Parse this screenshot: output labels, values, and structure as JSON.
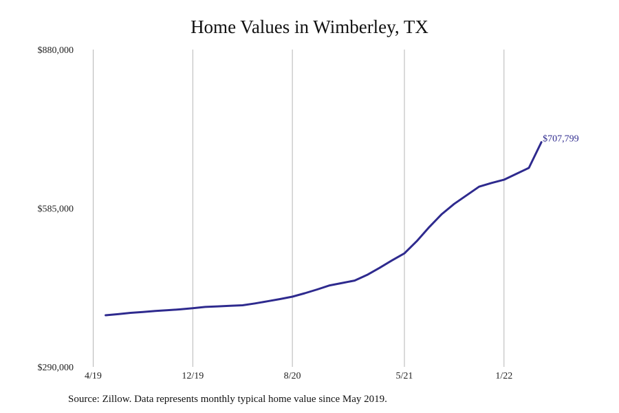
{
  "colors": {
    "line": "#2e2a8e",
    "grid": "#b5b5b5",
    "text": "#111111"
  },
  "footer": {
    "source": "Source: Zillow. Data represents monthly typical home value since May 2019."
  },
  "chart_data": {
    "type": "line",
    "title": "Home Values in Wimberley, TX",
    "xlabel": "",
    "ylabel": "",
    "ylim": [
      290000,
      880000
    ],
    "yticks": [
      290000,
      585000,
      880000
    ],
    "ytick_labels": [
      "$290,000",
      "$585,000",
      "$880,000"
    ],
    "xticks": [
      "2019-04",
      "2019-12",
      "2020-08",
      "2021-05",
      "2022-01"
    ],
    "xtick_labels": [
      "4/19",
      "12/19",
      "8/20",
      "5/21",
      "1/22"
    ],
    "grid": "vertical",
    "end_label": "$707,799",
    "series": [
      {
        "x": [
          "2019-05",
          "2019-06",
          "2019-07",
          "2019-08",
          "2019-09",
          "2019-10",
          "2019-11",
          "2019-12",
          "2020-01",
          "2020-02",
          "2020-03",
          "2020-04",
          "2020-05",
          "2020-06",
          "2020-07",
          "2020-08",
          "2020-09",
          "2020-10",
          "2020-11",
          "2020-12",
          "2021-01",
          "2021-02",
          "2021-03",
          "2021-04",
          "2021-05",
          "2021-06",
          "2021-07",
          "2021-08",
          "2021-09",
          "2021-10",
          "2021-11",
          "2021-12",
          "2022-01",
          "2022-02",
          "2022-03",
          "2022-04"
        ],
        "values": [
          386000,
          388000,
          390500,
          392000,
          394000,
          395500,
          397000,
          399000,
          401500,
          402500,
          403500,
          404500,
          408000,
          412000,
          416000,
          420500,
          427000,
          434000,
          441500,
          446000,
          450500,
          461000,
          474000,
          488000,
          501000,
          524000,
          550000,
          574000,
          593000,
          609000,
          625000,
          632000,
          638000,
          649000,
          660000,
          707799
        ]
      }
    ]
  }
}
